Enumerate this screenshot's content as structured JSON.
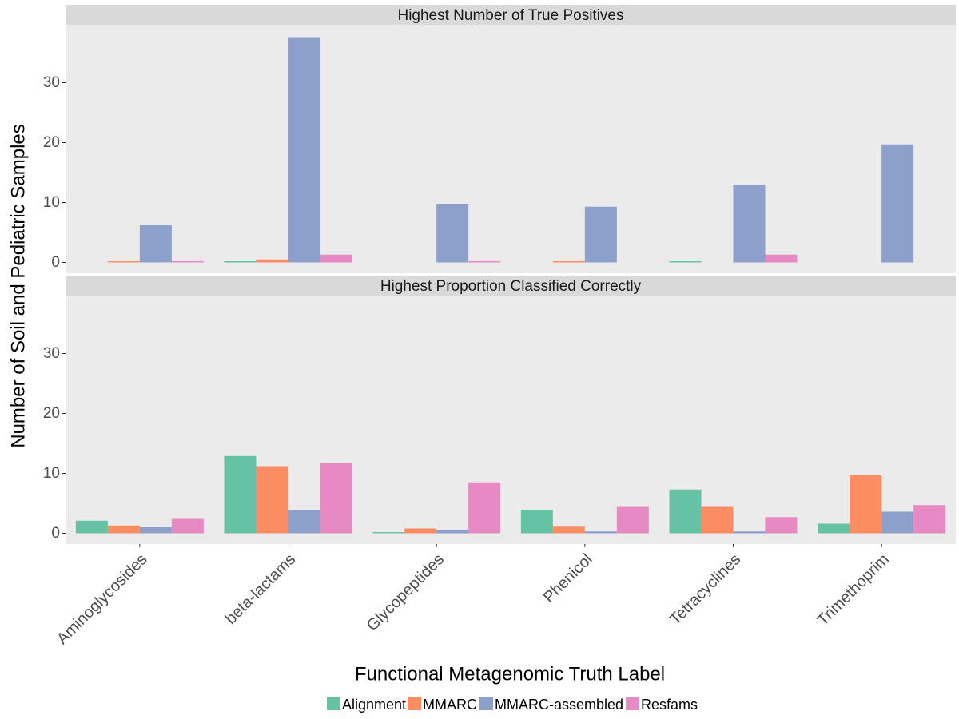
{
  "chart_data": {
    "type": "bar",
    "xlabel": "Functional Metagenomic Truth Label",
    "ylabel": "Number of Soil and Pediatric Samples",
    "ylim": [
      0,
      40
    ],
    "yticks": [
      0,
      10,
      20,
      30
    ],
    "grid": false,
    "legend_position": "bottom",
    "categories": [
      "Aminoglycosides",
      "beta-lactams",
      "Glycopeptides",
      "Phenicol",
      "Tetracyclines",
      "Trimethoprim"
    ],
    "series_names": [
      "Alignment",
      "MMARC",
      "MMARC-assembled",
      "Resfams"
    ],
    "colors": {
      "Alignment": "#66c2a5",
      "MMARC": "#fc8d62",
      "MMARC-assembled": "#8da0cb",
      "Resfams": "#e78ac3"
    },
    "panels": [
      {
        "title": "Highest Number of True Positives",
        "series": [
          {
            "name": "Alignment",
            "values": [
              null,
              0.2,
              null,
              null,
              0.2,
              null
            ]
          },
          {
            "name": "MMARC",
            "values": [
              0.2,
              0.5,
              null,
              0.2,
              null,
              null
            ]
          },
          {
            "name": "MMARC-assembled",
            "values": [
              6.2,
              37.6,
              9.8,
              9.3,
              12.9,
              19.7
            ]
          },
          {
            "name": "Resfams",
            "values": [
              0.2,
              1.3,
              0.2,
              null,
              1.3,
              null
            ]
          }
        ]
      },
      {
        "title": "Highest Proportion Classified Correctly",
        "series": [
          {
            "name": "Alignment",
            "values": [
              2.1,
              12.9,
              0.2,
              3.9,
              7.3,
              1.6
            ]
          },
          {
            "name": "MMARC",
            "values": [
              1.3,
              11.2,
              0.8,
              1.1,
              4.4,
              9.8
            ]
          },
          {
            "name": "MMARC-assembled",
            "values": [
              1.0,
              3.9,
              0.5,
              0.3,
              0.3,
              3.6
            ]
          },
          {
            "name": "Resfams",
            "values": [
              2.4,
              11.8,
              8.5,
              4.4,
              2.7,
              4.7
            ]
          }
        ]
      }
    ]
  }
}
